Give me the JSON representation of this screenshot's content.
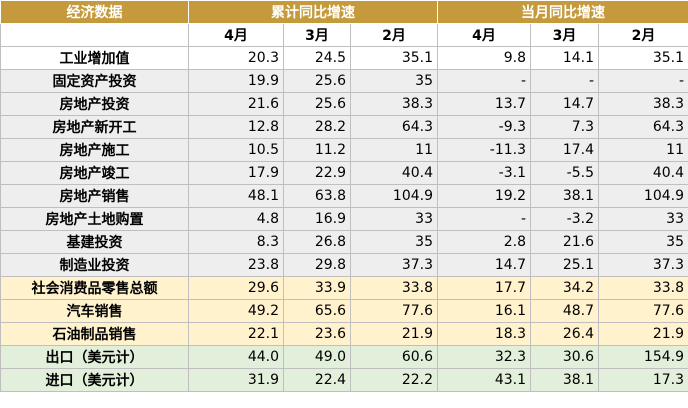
{
  "table": {
    "header": {
      "first": "经济数据",
      "groups": [
        "累计同比增速",
        "当月同比增速"
      ],
      "months": [
        "4月",
        "3月",
        "2月",
        "4月",
        "3月",
        "2月"
      ],
      "fill": "#c49a3c"
    },
    "rows": [
      {
        "cells": [
          "工业增加值",
          "20.3",
          "24.5",
          "35.1",
          "9.8",
          "14.1",
          "35.1"
        ],
        "fill": "#ffffff"
      },
      {
        "cells": [
          "固定资产投资",
          "19.9",
          "25.6",
          "35",
          "-",
          "-",
          "-"
        ],
        "fill": "#eeeeee"
      },
      {
        "cells": [
          "房地产投资",
          "21.6",
          "25.6",
          "38.3",
          "13.7",
          "14.7",
          "38.3"
        ],
        "fill": "#eeeeee"
      },
      {
        "cells": [
          "房地产新开工",
          "12.8",
          "28.2",
          "64.3",
          "-9.3",
          "7.3",
          "64.3"
        ],
        "fill": "#eeeeee"
      },
      {
        "cells": [
          "房地产施工",
          "10.5",
          "11.2",
          "11",
          "-11.3",
          "17.4",
          "11"
        ],
        "fill": "#eeeeee"
      },
      {
        "cells": [
          "房地产竣工",
          "17.9",
          "22.9",
          "40.4",
          "-3.1",
          "-5.5",
          "40.4"
        ],
        "fill": "#eeeeee"
      },
      {
        "cells": [
          "房地产销售",
          "48.1",
          "63.8",
          "104.9",
          "19.2",
          "38.1",
          "104.9"
        ],
        "fill": "#eeeeee"
      },
      {
        "cells": [
          "房地产土地购置",
          "4.8",
          "16.9",
          "33",
          "-",
          "-3.2",
          "33"
        ],
        "fill": "#eeeeee"
      },
      {
        "cells": [
          "基建投资",
          "8.3",
          "26.8",
          "35",
          "2.8",
          "21.6",
          "35"
        ],
        "fill": "#eeeeee"
      },
      {
        "cells": [
          "制造业投资",
          "23.8",
          "29.8",
          "37.3",
          "14.7",
          "25.1",
          "37.3"
        ],
        "fill": "#eeeeee"
      },
      {
        "cells": [
          "社会消费品零售总额",
          "29.6",
          "33.9",
          "33.8",
          "17.7",
          "34.2",
          "33.8"
        ],
        "fill": "#fff2cc"
      },
      {
        "cells": [
          "汽车销售",
          "49.2",
          "65.6",
          "77.6",
          "16.1",
          "48.7",
          "77.6"
        ],
        "fill": "#fff2cc"
      },
      {
        "cells": [
          "石油制品销售",
          "22.1",
          "23.6",
          "21.9",
          "18.3",
          "26.4",
          "21.9"
        ],
        "fill": "#fff2cc"
      },
      {
        "cells": [
          "出口（美元计）",
          "44.0",
          "49.0",
          "60.6",
          "32.3",
          "30.6",
          "154.9"
        ],
        "fill": "#e2efda"
      },
      {
        "cells": [
          "进口（美元计）",
          "31.9",
          "22.4",
          "22.2",
          "43.1",
          "38.1",
          "17.3"
        ],
        "fill": "#e2efda"
      }
    ]
  }
}
